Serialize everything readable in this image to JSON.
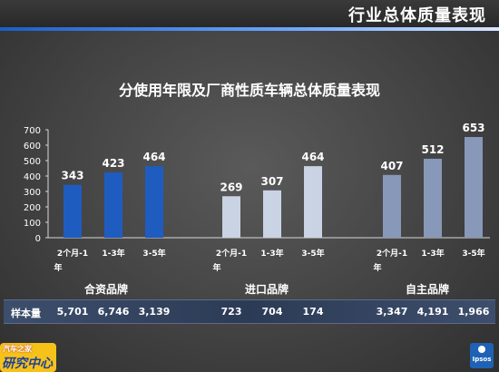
{
  "header": {
    "title": "行业总体质量表现"
  },
  "chart_data": {
    "type": "bar",
    "title": "分使用年限及厂商性质车辆总体质量表现",
    "ylim": [
      0,
      700
    ],
    "yticks": [
      0,
      100,
      200,
      300,
      400,
      500,
      600,
      700
    ],
    "grid": false,
    "groups": [
      {
        "name": "合资品牌",
        "color": "#1f5cc0",
        "categories": [
          "2个月-1年",
          "1-3年",
          "3-5年"
        ],
        "values": [
          343,
          423,
          464
        ]
      },
      {
        "name": "进口品牌",
        "color": "#c9d3e3",
        "categories": [
          "2个月-1年",
          "1-3年",
          "3-5年"
        ],
        "values": [
          269,
          307,
          464
        ]
      },
      {
        "name": "自主品牌",
        "color": "#8898b8",
        "categories": [
          "2个月-1年",
          "1-3年",
          "3-5年"
        ],
        "values": [
          407,
          512,
          653
        ]
      }
    ]
  },
  "sample_size": {
    "label": "样本量",
    "values": [
      "5,701",
      "6,746",
      "3,139",
      "723",
      "704",
      "174",
      "3,347",
      "4,191",
      "1,966"
    ]
  },
  "logos": {
    "left_top": "汽车之家",
    "left_bottom": "研究中心",
    "right": "Ipsos"
  }
}
